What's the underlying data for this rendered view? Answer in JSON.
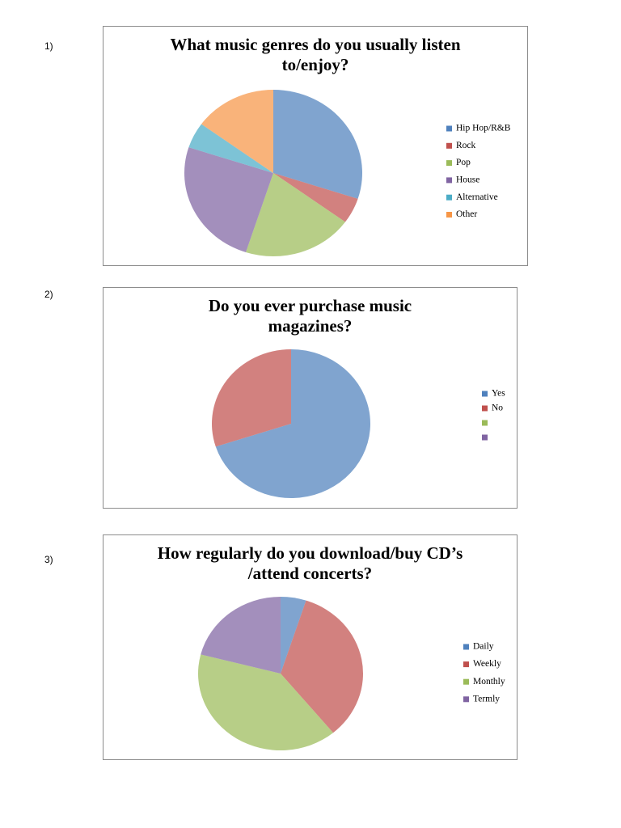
{
  "question_numbers": [
    "1)",
    "2)",
    "3)"
  ],
  "chart_data": [
    {
      "type": "pie",
      "title": "What music genres do you usually listen to/enjoy?",
      "categories": [
        "Hip Hop/R&B",
        "Rock",
        "Pop",
        "House",
        "Alternative",
        "Other"
      ],
      "values": [
        30,
        5,
        20,
        25,
        5,
        15
      ],
      "colors": [
        "#4f81bd",
        "#c0504d",
        "#9bbb59",
        "#8064a2",
        "#4bacc6",
        "#f79646"
      ]
    },
    {
      "type": "pie",
      "title": "Do you ever purchase music magazines?",
      "categories": [
        "Yes",
        "No",
        null,
        null
      ],
      "values": [
        70,
        30,
        0,
        0
      ],
      "colors": [
        "#4f81bd",
        "#c0504d",
        "#9bbb59",
        "#8064a2"
      ]
    },
    {
      "type": "pie",
      "title": "How regularly do you download/buy CD’s /attend concerts?",
      "categories": [
        "Daily",
        "Weekly",
        "Monthly",
        "Termly"
      ],
      "values": [
        5,
        34,
        40,
        21
      ],
      "colors": [
        "#4f81bd",
        "#c0504d",
        "#9bbb59",
        "#8064a2"
      ]
    }
  ]
}
